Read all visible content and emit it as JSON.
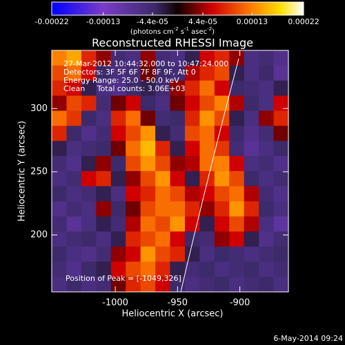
{
  "chart_data": {
    "type": "heatmap",
    "title": "Reconstructed RHESSI Image",
    "x_label": "Heliocentric X (arcsec)",
    "y_label": "Heliocentric Y (arcsec)",
    "annotations": [
      "27-Mar-2012 10:44:32.000 to 10:47:24.000",
      "Detectors: 3F 5F 6F 7F 8F 9F, Att 0",
      "Energy Range: 25.0 - 50.0 keV",
      "Clean     Total counts: 3.06E+03"
    ],
    "peak_label": "Position of Peak = [-1049,326]",
    "footer": "6-May-2014 09:24",
    "colorbar_label": [
      "(photons cm",
      "-2",
      " s",
      "-1",
      " asec",
      "-2",
      ")"
    ],
    "clim": [
      -0.00022,
      0.00022
    ],
    "cticks": [
      -0.00022,
      -0.00013,
      {
        "value": -4.4e-05,
        "label": "-4.4e-05"
      },
      {
        "value": 4.4e-05,
        "label": "4.4e-05"
      },
      0.00013,
      0.00022
    ],
    "colorscale": [
      [
        -0.00022,
        "#0000ff"
      ],
      [
        -0.00013,
        "#7a3cc8"
      ],
      [
        -4e-05,
        "#3c2a6a"
      ],
      [
        0,
        "#100000"
      ],
      [
        6e-05,
        "#d00000"
      ],
      [
        0.00013,
        "#ff8000"
      ],
      [
        0.00018,
        "#ffe000"
      ],
      [
        0.00022,
        "#ffffff"
      ]
    ],
    "xlim": [
      -1051,
      -861
    ],
    "ylim": [
      155,
      346
    ],
    "xticks": [
      -1000,
      -950,
      -900
    ],
    "yticks": [
      200,
      250,
      300
    ],
    "z": [
      [
        0.00013,
        0.00015,
        8e-05,
        4e-05,
        -5e-05,
        -6e-05,
        4e-05,
        -5e-05,
        -6e-05,
        -3e-05,
        6e-05,
        8e-05,
        4e-05,
        -6e-05,
        -5e-05,
        -7e-05
      ],
      [
        0.0001,
        0.00012,
        6e-05,
        -4e-05,
        -6e-05,
        -5e-05,
        3e-05,
        -4e-05,
        -5e-05,
        5e-05,
        8e-05,
        0.0001,
        -3e-05,
        -6e-05,
        -4e-05,
        -8e-05
      ],
      [
        8e-05,
        6e-05,
        -3e-05,
        -6e-05,
        -7e-05,
        -4e-05,
        -3e-05,
        -5e-05,
        4e-05,
        8e-05,
        0.00012,
        6e-05,
        -4e-05,
        -5e-05,
        -6e-05,
        -3e-05
      ],
      [
        4e-05,
        0.0001,
        8e-05,
        -5e-05,
        3e-05,
        6e-05,
        -4e-05,
        -6e-05,
        3e-05,
        6e-05,
        0.0001,
        0.00013,
        5e-05,
        -4e-05,
        -6e-05,
        6e-05
      ],
      [
        0.00012,
        9e-05,
        -4e-05,
        -6e-05,
        8e-05,
        0.00012,
        3e-05,
        -5e-05,
        -4e-05,
        8e-05,
        0.00014,
        0.0001,
        -3e-05,
        -6e-05,
        4e-05,
        8e-05
      ],
      [
        8e-05,
        -4e-05,
        -7e-05,
        -5e-05,
        6e-05,
        0.0001,
        0.00014,
        -3e-05,
        -5e-05,
        0.0001,
        0.00012,
        6e-05,
        -4e-05,
        -7e-05,
        -5e-05,
        3e-05
      ],
      [
        -3e-05,
        -6e-05,
        -5e-05,
        -4e-05,
        3e-05,
        0.00012,
        0.00016,
        8e-05,
        -3e-05,
        6e-05,
        0.00012,
        9e-05,
        -5e-05,
        -8e-05,
        -6e-05,
        -4e-05
      ],
      [
        -5e-05,
        -7e-05,
        -3e-05,
        4e-05,
        -4e-05,
        0.0001,
        0.00014,
        0.0001,
        4e-05,
        5e-05,
        0.00012,
        0.00013,
        6e-05,
        -6e-05,
        -5e-05,
        -7e-05
      ],
      [
        -6e-05,
        -5e-05,
        6e-05,
        8e-05,
        -3e-05,
        4e-05,
        0.0001,
        0.00014,
        6e-05,
        -3e-05,
        8e-05,
        0.00014,
        0.0001,
        -4e-05,
        -6e-05,
        -5e-05
      ],
      [
        -4e-05,
        -6e-05,
        -5e-05,
        -3e-05,
        -6e-05,
        6e-05,
        8e-05,
        0.00012,
        0.0001,
        5e-05,
        6e-05,
        0.0001,
        0.00012,
        5e-05,
        -5e-05,
        -7e-05
      ],
      [
        -7e-05,
        -5e-05,
        -6e-05,
        4e-05,
        -4e-05,
        3e-05,
        0.0001,
        0.00012,
        0.00012,
        8e-05,
        4e-05,
        8e-05,
        0.00014,
        8e-05,
        -4e-05,
        -6e-05
      ],
      [
        -5e-05,
        -8e-05,
        -6e-05,
        -3e-05,
        -5e-05,
        5e-05,
        0.00012,
        0.0001,
        0.00014,
        6e-05,
        -3e-05,
        6e-05,
        0.0001,
        5e-05,
        -6e-05,
        -9e-05
      ],
      [
        -6e-05,
        -5e-05,
        -4e-05,
        -6e-05,
        -3e-05,
        8e-05,
        0.0001,
        0.00012,
        6e-05,
        -4e-05,
        -5e-05,
        4e-05,
        6e-05,
        -3e-05,
        -7e-05,
        -5e-05
      ],
      [
        -4e-05,
        -6e-05,
        -7e-05,
        -5e-05,
        4e-05,
        6e-05,
        0.00014,
        0.0001,
        8e-05,
        -3e-05,
        -6e-05,
        -4e-05,
        -5e-05,
        -6e-05,
        -5e-05,
        -4e-05
      ],
      [
        -5e-05,
        -7e-05,
        -4e-05,
        -3e-05,
        6e-05,
        0.0001,
        0.00012,
        8e-05,
        -3e-05,
        -5e-05,
        -4e-05,
        -6e-05,
        -5e-05,
        -4e-05,
        -6e-05,
        -5e-05
      ],
      [
        -6e-05,
        -4e-05,
        -6e-05,
        -5e-05,
        3e-05,
        8e-05,
        0.0001,
        6e-05,
        -4e-05,
        -6e-05,
        -5e-05,
        -4e-05,
        -6e-05,
        -5e-05,
        -4e-05,
        -6e-05
      ]
    ]
  }
}
